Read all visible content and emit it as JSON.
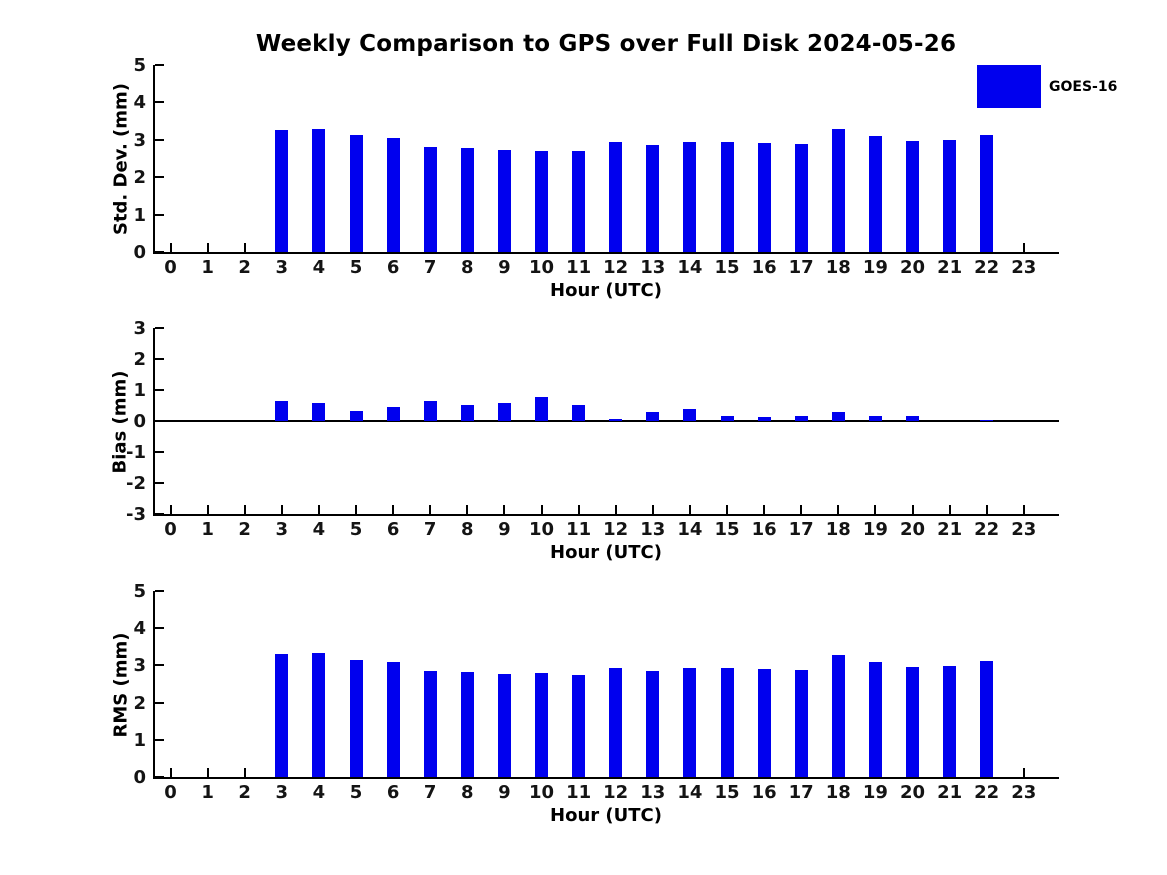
{
  "title": "Weekly Comparison to GPS over Full Disk 2024-05-26",
  "legend": {
    "label": "GOES-16",
    "position": "top-right",
    "swatch_color": "#0000ee"
  },
  "colors": {
    "bar": "#0000ee",
    "axis": "#000000",
    "tick_text": "#141414",
    "background": "#ffffff"
  },
  "chart_data": [
    {
      "type": "bar",
      "series_name": "GOES-16",
      "ylabel": "Std. Dev. (mm)",
      "xlabel": "Hour (UTC)",
      "ylim": [
        0,
        5
      ],
      "yticks": [
        0,
        1,
        2,
        3,
        4,
        5
      ],
      "categories": [
        0,
        1,
        2,
        3,
        4,
        5,
        6,
        7,
        8,
        9,
        10,
        11,
        12,
        13,
        14,
        15,
        16,
        17,
        18,
        19,
        20,
        21,
        22,
        23
      ],
      "values": [
        0,
        0,
        0,
        3.26,
        3.29,
        3.13,
        3.06,
        2.81,
        2.78,
        2.73,
        2.7,
        2.71,
        2.95,
        2.85,
        2.95,
        2.95,
        2.92,
        2.89,
        3.28,
        3.09,
        2.98,
        2.99,
        3.14,
        0
      ],
      "grid": false,
      "zero_line": false
    },
    {
      "type": "bar",
      "series_name": "GOES-16",
      "ylabel": "Bias (mm)",
      "xlabel": "Hour (UTC)",
      "ylim": [
        -3,
        3
      ],
      "yticks": [
        -3,
        -2,
        -1,
        0,
        1,
        2,
        3
      ],
      "categories": [
        0,
        1,
        2,
        3,
        4,
        5,
        6,
        7,
        8,
        9,
        10,
        11,
        12,
        13,
        14,
        15,
        16,
        17,
        18,
        19,
        20,
        21,
        22,
        23
      ],
      "values": [
        0,
        0,
        0,
        0.65,
        0.57,
        0.32,
        0.45,
        0.63,
        0.51,
        0.57,
        0.76,
        0.53,
        0.08,
        0.28,
        0.38,
        0.17,
        0.13,
        0.16,
        0.29,
        0.16,
        0.15,
        0,
        0.02,
        0
      ],
      "grid": false,
      "zero_line": true
    },
    {
      "type": "bar",
      "series_name": "GOES-16",
      "ylabel": "RMS (mm)",
      "xlabel": "Hour (UTC)",
      "ylim": [
        0,
        5
      ],
      "yticks": [
        0,
        1,
        2,
        3,
        4,
        5
      ],
      "categories": [
        0,
        1,
        2,
        3,
        4,
        5,
        6,
        7,
        8,
        9,
        10,
        11,
        12,
        13,
        14,
        15,
        16,
        17,
        18,
        19,
        20,
        21,
        22,
        23
      ],
      "values": [
        0,
        0,
        0,
        3.3,
        3.33,
        3.15,
        3.09,
        2.85,
        2.82,
        2.77,
        2.8,
        2.74,
        2.93,
        2.86,
        2.94,
        2.94,
        2.91,
        2.88,
        3.27,
        3.08,
        2.95,
        2.98,
        3.13,
        0
      ],
      "grid": false,
      "zero_line": false
    }
  ]
}
